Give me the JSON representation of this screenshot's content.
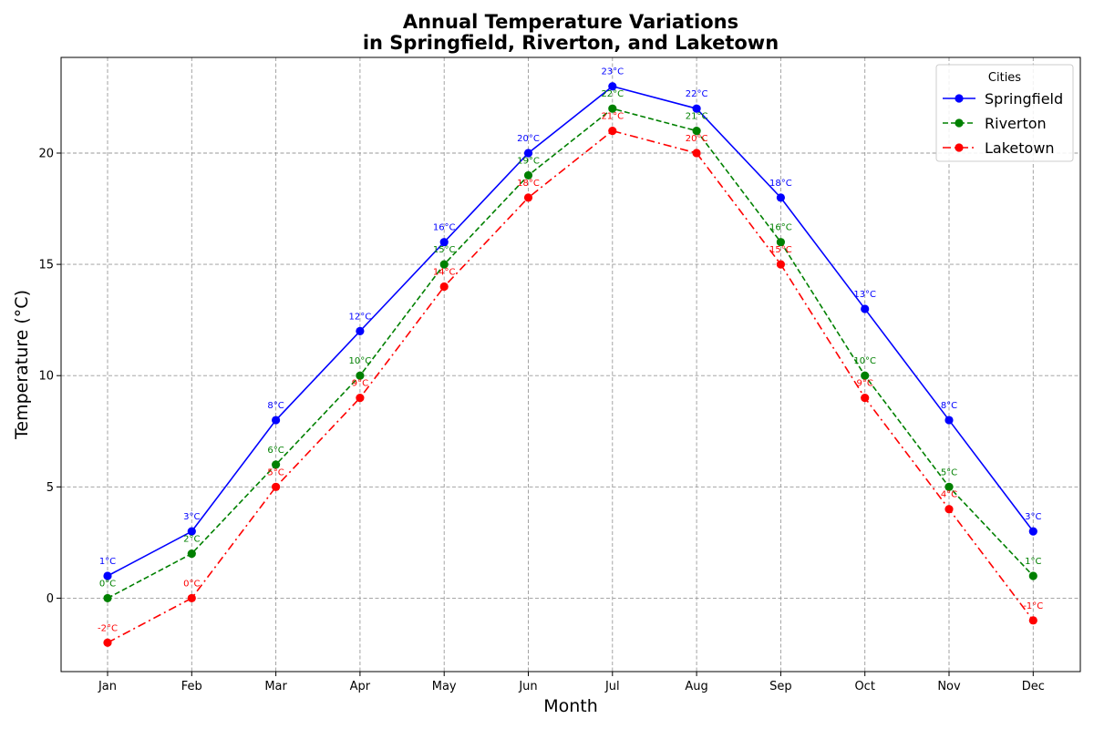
{
  "chart_data": {
    "type": "line",
    "title": [
      "Annual Temperature Variations",
      "in Springfield, Riverton, and Laketown"
    ],
    "xlabel": "Month",
    "ylabel": "Temperature (°C)",
    "categories": [
      "Jan",
      "Feb",
      "Mar",
      "Apr",
      "May",
      "Jun",
      "Jul",
      "Aug",
      "Sep",
      "Oct",
      "Nov",
      "Dec"
    ],
    "ylim": [
      -3.3,
      24.3
    ],
    "yticks": [
      0,
      5,
      10,
      15,
      20
    ],
    "grid": true,
    "legend": {
      "title": "Cities",
      "placement": "top-right"
    },
    "value_suffix": "°C",
    "series": [
      {
        "name": "Springfield",
        "color": "#0000ff",
        "dash": "solid",
        "values": [
          1,
          3,
          8,
          12,
          16,
          20,
          23,
          22,
          18,
          13,
          8,
          3
        ]
      },
      {
        "name": "Riverton",
        "color": "#008000",
        "dash": "dashed",
        "values": [
          0,
          2,
          6,
          10,
          15,
          19,
          22,
          21,
          16,
          10,
          5,
          1
        ]
      },
      {
        "name": "Laketown",
        "color": "#ff0000",
        "dash": "dashdot",
        "values": [
          -2,
          0,
          5,
          9,
          14,
          18,
          21,
          20,
          15,
          9,
          4,
          -1
        ]
      }
    ]
  }
}
